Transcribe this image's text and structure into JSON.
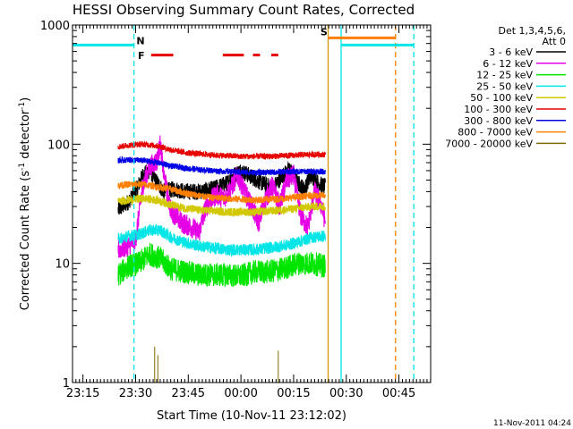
{
  "chart_data": {
    "type": "line",
    "title": "HESSI Observing Summary Count Rates, Corrected",
    "xlabel": "Start Time (10-Nov-11 23:12:02)",
    "ylabel": "Corrected Count Rate (s⁻¹ detector⁻¹)",
    "timestamp": "11-Nov-2011 04:24",
    "x_units": "minutes after 23:12:02",
    "xlim": [
      0,
      102
    ],
    "ylim": [
      1,
      1000
    ],
    "y_scale": "log",
    "x_ticks": [
      {
        "t": 2.97,
        "label": "23:15"
      },
      {
        "t": 17.97,
        "label": "23:30"
      },
      {
        "t": 32.97,
        "label": "23:45"
      },
      {
        "t": 47.97,
        "label": "00:00"
      },
      {
        "t": 62.97,
        "label": "00:15"
      },
      {
        "t": 77.97,
        "label": "00:30"
      },
      {
        "t": 92.97,
        "label": "00:45"
      }
    ],
    "y_ticks": [
      {
        "v": 1,
        "label": "1"
      },
      {
        "v": 10,
        "label": "10"
      },
      {
        "v": 100,
        "label": "100"
      },
      {
        "v": 1000,
        "label": "1000"
      }
    ],
    "legend": {
      "position": "top-right",
      "header": [
        "Det 1,3,4,5,6,",
        "Att 0"
      ],
      "entries": [
        {
          "label": "3 - 6 keV",
          "color": "#000000"
        },
        {
          "label": "6 - 12 keV",
          "color": "#e600e6"
        },
        {
          "label": "12 - 25 keV",
          "color": "#00e600"
        },
        {
          "label": "25 - 50 keV",
          "color": "#00e6e6"
        },
        {
          "label": "50 - 100 keV",
          "color": "#d2c800"
        },
        {
          "label": "100 - 300 keV",
          "color": "#e60000"
        },
        {
          "label": "300 - 800 keV",
          "color": "#0000e6"
        },
        {
          "label": "800 - 7000 keV",
          "color": "#ff8000"
        },
        {
          "label": "7000 - 20000 keV",
          "color": "#7f6a00"
        }
      ]
    },
    "series": [
      {
        "name": "3 - 6 keV",
        "color": "#000000",
        "points": [
          [
            13,
            28
          ],
          [
            16,
            33
          ],
          [
            18,
            40
          ],
          [
            20,
            55
          ],
          [
            22,
            60
          ],
          [
            24,
            48
          ],
          [
            26,
            40
          ],
          [
            29,
            42
          ],
          [
            32,
            40
          ],
          [
            36,
            40
          ],
          [
            40,
            42
          ],
          [
            44,
            47
          ],
          [
            46,
            55
          ],
          [
            48,
            60
          ],
          [
            51,
            53
          ],
          [
            54,
            47
          ],
          [
            57,
            43
          ],
          [
            60,
            55
          ],
          [
            62,
            62
          ],
          [
            64,
            48
          ],
          [
            66,
            42
          ],
          [
            68,
            55
          ],
          [
            70,
            47
          ],
          [
            72,
            44
          ]
        ],
        "noise": 0.07
      },
      {
        "name": "6 - 12 keV",
        "color": "#e600e6",
        "points": [
          [
            13,
            13
          ],
          [
            16,
            14
          ],
          [
            18,
            16
          ],
          [
            20,
            45
          ],
          [
            22,
            65
          ],
          [
            24,
            72
          ],
          [
            25,
            100
          ],
          [
            26,
            55
          ],
          [
            28,
            28
          ],
          [
            31,
            22
          ],
          [
            34,
            20
          ],
          [
            36,
            18
          ],
          [
            38,
            30
          ],
          [
            41,
            38
          ],
          [
            43,
            35
          ],
          [
            45,
            42
          ],
          [
            47,
            55
          ],
          [
            49,
            40
          ],
          [
            51,
            30
          ],
          [
            53,
            22
          ],
          [
            55,
            35
          ],
          [
            57,
            45
          ],
          [
            59,
            30
          ],
          [
            61,
            50
          ],
          [
            63,
            55
          ],
          [
            65,
            25
          ],
          [
            67,
            20
          ],
          [
            69,
            40
          ],
          [
            71,
            30
          ],
          [
            72,
            22
          ]
        ],
        "noise": 0.09
      },
      {
        "name": "12 - 25 keV",
        "color": "#00e600",
        "points": [
          [
            13,
            8
          ],
          [
            16,
            9.5
          ],
          [
            19,
            10
          ],
          [
            22,
            12
          ],
          [
            25,
            11
          ],
          [
            28,
            9
          ],
          [
            32,
            8.5
          ],
          [
            36,
            8
          ],
          [
            40,
            8
          ],
          [
            44,
            8
          ],
          [
            48,
            7.8
          ],
          [
            52,
            8.5
          ],
          [
            56,
            8.5
          ],
          [
            60,
            9
          ],
          [
            64,
            10
          ],
          [
            68,
            10
          ],
          [
            72,
            9.5
          ]
        ],
        "noise": 0.1
      },
      {
        "name": "25 - 50 keV",
        "color": "#00e6e6",
        "points": [
          [
            13,
            16
          ],
          [
            16,
            17
          ],
          [
            19,
            17.5
          ],
          [
            22,
            19
          ],
          [
            25,
            19
          ],
          [
            28,
            16.5
          ],
          [
            32,
            15
          ],
          [
            36,
            14
          ],
          [
            40,
            13.5
          ],
          [
            44,
            13
          ],
          [
            48,
            13
          ],
          [
            52,
            13
          ],
          [
            56,
            13.5
          ],
          [
            60,
            14
          ],
          [
            64,
            15
          ],
          [
            68,
            16.5
          ],
          [
            72,
            17
          ]
        ],
        "noise": 0.05
      },
      {
        "name": "50 - 100 keV",
        "color": "#d2c800",
        "points": [
          [
            13,
            33
          ],
          [
            16,
            34
          ],
          [
            20,
            35
          ],
          [
            24,
            34
          ],
          [
            28,
            31
          ],
          [
            32,
            29
          ],
          [
            36,
            28
          ],
          [
            40,
            27.5
          ],
          [
            44,
            27
          ],
          [
            48,
            27
          ],
          [
            52,
            27
          ],
          [
            56,
            27.5
          ],
          [
            60,
            28
          ],
          [
            64,
            29
          ],
          [
            68,
            30
          ],
          [
            72,
            30
          ]
        ],
        "noise": 0.035
      },
      {
        "name": "100 - 300 keV",
        "color": "#e60000",
        "points": [
          [
            13,
            95
          ],
          [
            16,
            98
          ],
          [
            20,
            100
          ],
          [
            24,
            97
          ],
          [
            28,
            90
          ],
          [
            32,
            85
          ],
          [
            36,
            83
          ],
          [
            40,
            81
          ],
          [
            44,
            80
          ],
          [
            48,
            79
          ],
          [
            52,
            79
          ],
          [
            56,
            79
          ],
          [
            60,
            80
          ],
          [
            64,
            81
          ],
          [
            68,
            82
          ],
          [
            72,
            82
          ]
        ],
        "noise": 0.025
      },
      {
        "name": "300 - 800 keV",
        "color": "#0000e6",
        "points": [
          [
            13,
            73
          ],
          [
            16,
            74
          ],
          [
            20,
            73
          ],
          [
            24,
            70
          ],
          [
            28,
            66
          ],
          [
            32,
            63
          ],
          [
            36,
            61
          ],
          [
            40,
            60
          ],
          [
            44,
            59
          ],
          [
            48,
            58
          ],
          [
            52,
            58
          ],
          [
            56,
            58
          ],
          [
            60,
            58.5
          ],
          [
            64,
            59
          ],
          [
            68,
            59
          ],
          [
            72,
            59
          ]
        ],
        "noise": 0.025
      },
      {
        "name": "800 - 7000 keV",
        "color": "#ff8000",
        "points": [
          [
            13,
            45
          ],
          [
            16,
            46
          ],
          [
            20,
            46
          ],
          [
            24,
            44
          ],
          [
            28,
            42
          ],
          [
            32,
            39
          ],
          [
            36,
            37
          ],
          [
            40,
            35.5
          ],
          [
            44,
            35
          ],
          [
            48,
            34.5
          ],
          [
            52,
            34
          ],
          [
            56,
            34.5
          ],
          [
            60,
            35
          ],
          [
            64,
            36
          ],
          [
            68,
            37
          ],
          [
            72,
            37
          ]
        ],
        "noise": 0.03
      },
      {
        "name": "7000 - 20000 keV",
        "color": "#7f6a00",
        "points": [
          [
            23.4,
            2
          ],
          [
            24.3,
            1.7
          ],
          [
            58.6,
            1.85
          ]
        ],
        "style": "spikes"
      }
    ],
    "vertical_lines": [
      {
        "t": 17.5,
        "color": "#00e6e6",
        "style": "dashed"
      },
      {
        "t": 72.8,
        "color": "#d29600",
        "style": "solid"
      },
      {
        "t": 76.5,
        "color": "#00e6e6",
        "style": "solid"
      },
      {
        "t": 92.0,
        "color": "#ff8000",
        "style": "dashed"
      },
      {
        "t": 97.2,
        "color": "#00e6e6",
        "style": "dashed"
      }
    ],
    "horizontal_segments": [
      {
        "t0": 0,
        "t1": 17.5,
        "v": 680,
        "color": "#00e6e6"
      },
      {
        "t0": 76.5,
        "t1": 97.2,
        "v": 680,
        "color": "#00e6e6"
      },
      {
        "t0": 72.8,
        "t1": 92.0,
        "v": 780,
        "color": "#ff8000"
      }
    ],
    "flags": [
      {
        "label": "N",
        "color": "#00e6e6",
        "t": 18.2,
        "v": 690
      },
      {
        "label": "F",
        "color": "#e60000",
        "t": 18.6,
        "v": 520
      },
      {
        "label": "S",
        "color": "#ff8000",
        "t": 70.6,
        "v": 820
      }
    ],
    "flare_bars": [
      {
        "t0": 22.4,
        "t1": 28.7,
        "v": 560,
        "color": "#e60000"
      },
      {
        "t0": 42.8,
        "t1": 48.8,
        "v": 560,
        "color": "#e60000"
      },
      {
        "t0": 51.4,
        "t1": 53.4,
        "v": 560,
        "color": "#e60000"
      },
      {
        "t0": 56.6,
        "t1": 58.6,
        "v": 560,
        "color": "#e60000"
      }
    ]
  }
}
